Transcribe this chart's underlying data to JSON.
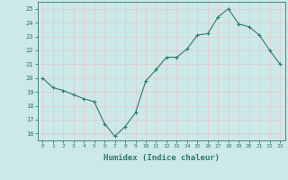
{
  "x": [
    0,
    1,
    2,
    3,
    4,
    5,
    6,
    7,
    8,
    9,
    10,
    11,
    12,
    13,
    14,
    15,
    16,
    17,
    18,
    19,
    20,
    21,
    22,
    23
  ],
  "y": [
    20.0,
    19.3,
    19.1,
    18.8,
    18.5,
    18.3,
    16.7,
    15.8,
    16.5,
    17.5,
    19.8,
    20.6,
    21.5,
    21.5,
    22.1,
    23.1,
    23.2,
    24.4,
    25.0,
    23.9,
    23.7,
    23.1,
    22.0,
    21.0
  ],
  "xlabel": "Humidex (Indice chaleur)",
  "line_color": "#2d7a6e",
  "marker": "+",
  "marker_size": 3,
  "marker_color": "#2d7a6e",
  "bg_color": "#cce8e8",
  "grid_color": "#e8c8c8",
  "axis_color": "#2d7a6e",
  "tick_color": "#2d7a6e",
  "label_color": "#2d7a6e",
  "ylim": [
    15.5,
    25.5
  ],
  "yticks": [
    16,
    17,
    18,
    19,
    20,
    21,
    22,
    23,
    24,
    25
  ],
  "xticks": [
    0,
    1,
    2,
    3,
    4,
    5,
    6,
    7,
    8,
    9,
    10,
    11,
    12,
    13,
    14,
    15,
    16,
    17,
    18,
    19,
    20,
    21,
    22,
    23
  ],
  "xlim": [
    -0.5,
    23.5
  ]
}
